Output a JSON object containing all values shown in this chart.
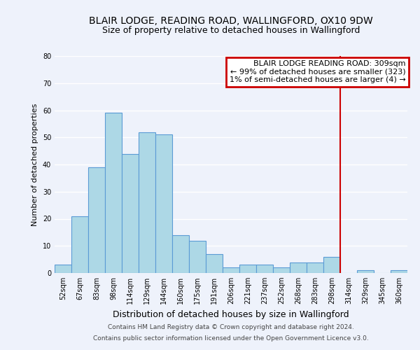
{
  "title": "BLAIR LODGE, READING ROAD, WALLINGFORD, OX10 9DW",
  "subtitle": "Size of property relative to detached houses in Wallingford",
  "xlabel": "Distribution of detached houses by size in Wallingford",
  "ylabel": "Number of detached properties",
  "bin_labels": [
    "52sqm",
    "67sqm",
    "83sqm",
    "98sqm",
    "114sqm",
    "129sqm",
    "144sqm",
    "160sqm",
    "175sqm",
    "191sqm",
    "206sqm",
    "221sqm",
    "237sqm",
    "252sqm",
    "268sqm",
    "283sqm",
    "298sqm",
    "314sqm",
    "329sqm",
    "345sqm",
    "360sqm"
  ],
  "bar_heights": [
    3,
    21,
    39,
    59,
    44,
    52,
    51,
    14,
    12,
    7,
    2,
    3,
    3,
    2,
    4,
    4,
    6,
    0,
    1,
    0,
    1
  ],
  "bar_color": "#add8e6",
  "bar_edge_color": "#5b9bd5",
  "vline_x": 16.5,
  "vline_color": "#cc0000",
  "annotation_title": "BLAIR LODGE READING ROAD: 309sqm",
  "annotation_line1": "← 99% of detached houses are smaller (323)",
  "annotation_line2": "1% of semi-detached houses are larger (4) →",
  "annotation_box_color": "#cc0000",
  "ylim": [
    0,
    80
  ],
  "yticks": [
    0,
    10,
    20,
    30,
    40,
    50,
    60,
    70,
    80
  ],
  "footer1": "Contains HM Land Registry data © Crown copyright and database right 2024.",
  "footer2": "Contains public sector information licensed under the Open Government Licence v3.0.",
  "bg_color": "#eef2fb",
  "grid_color": "#ffffff",
  "title_fontsize": 10,
  "subtitle_fontsize": 9,
  "ylabel_fontsize": 8,
  "xlabel_fontsize": 9,
  "tick_fontsize": 7,
  "ann_fontsize": 8
}
